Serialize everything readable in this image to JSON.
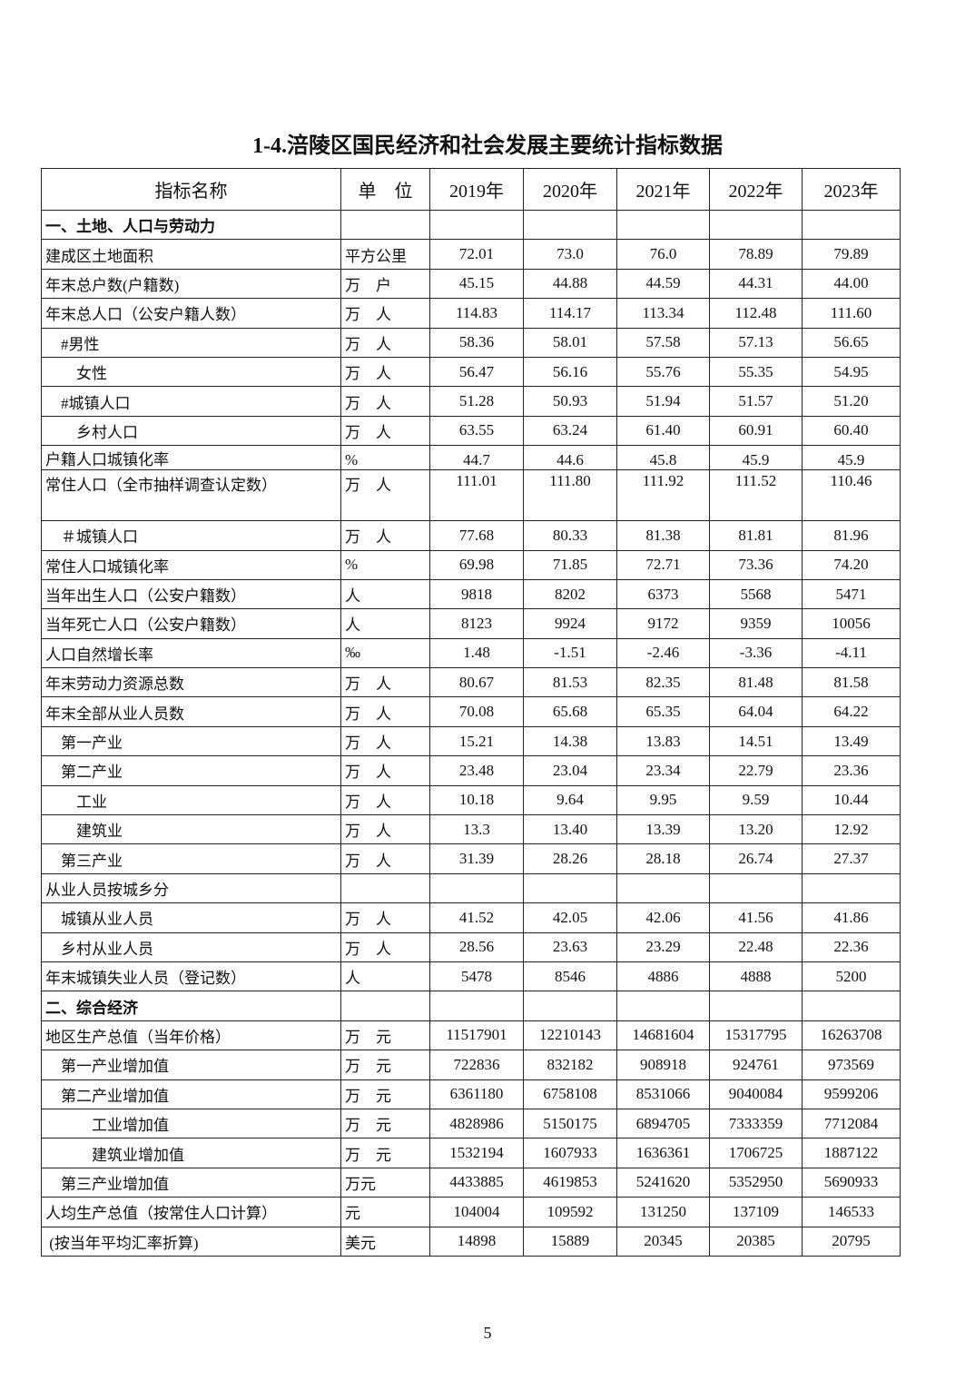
{
  "title": "1-4.涪陵区国民经济和社会发展主要统计指标数据",
  "table": {
    "headers": [
      "指标名称",
      "单　位",
      "2019年",
      "2020年",
      "2021年",
      "2022年",
      "2023年"
    ],
    "rows": [
      {
        "name": "一、土地、人口与劳动力",
        "unit": "",
        "values": [
          "",
          "",
          "",
          "",
          ""
        ],
        "section": true
      },
      {
        "name": "建成区土地面积",
        "unit": "平方公里",
        "values": [
          "72.01",
          "73.0",
          "76.0",
          "78.89",
          "79.89"
        ]
      },
      {
        "name": "年末总户数(户籍数)",
        "unit": "万　户",
        "values": [
          "45.15",
          "44.88",
          "44.59",
          "44.31",
          "44.00"
        ]
      },
      {
        "name": "年末总人口（公安户籍人数）",
        "unit": "万　人",
        "values": [
          "114.83",
          "114.17",
          "113.34",
          "112.48",
          "111.60"
        ]
      },
      {
        "name": "　#男性",
        "unit": "万　人",
        "values": [
          "58.36",
          "58.01",
          "57.58",
          "57.13",
          "56.65"
        ]
      },
      {
        "name": "　　女性",
        "unit": "万　人",
        "values": [
          "56.47",
          "56.16",
          "55.76",
          "55.35",
          "54.95"
        ]
      },
      {
        "name": "　#城镇人口",
        "unit": "万　人",
        "values": [
          "51.28",
          "50.93",
          "51.94",
          "51.57",
          "51.20"
        ]
      },
      {
        "name": "　　乡村人口",
        "unit": "万　人",
        "values": [
          "63.55",
          "63.24",
          "61.40",
          "60.91",
          "60.40"
        ]
      },
      {
        "name": "户籍人口城镇化率",
        "unit": "%",
        "values": [
          "44.7",
          "44.6",
          "45.8",
          "45.9",
          "45.9"
        ],
        "short": true
      },
      {
        "name": "常住人口（全市抽样调查认定数）",
        "unit": "万　人",
        "values": [
          "111.01",
          "111.80",
          "111.92",
          "111.52",
          "110.46"
        ],
        "tall": true
      },
      {
        "name": "　＃城镇人口",
        "unit": "万　人",
        "values": [
          "77.68",
          "80.33",
          "81.38",
          "81.81",
          "81.96"
        ]
      },
      {
        "name": "常住人口城镇化率",
        "unit": "%",
        "values": [
          "69.98",
          "71.85",
          "72.71",
          "73.36",
          "74.20"
        ]
      },
      {
        "name": "当年出生人口（公安户籍数）",
        "unit": "人",
        "values": [
          "9818",
          "8202",
          "6373",
          "5568",
          "5471"
        ]
      },
      {
        "name": "当年死亡人口（公安户籍数）",
        "unit": "人",
        "values": [
          "8123",
          "9924",
          "9172",
          "9359",
          "10056"
        ]
      },
      {
        "name": "人口自然增长率",
        "unit": "‰",
        "values": [
          "1.48",
          "-1.51",
          "-2.46",
          "-3.36",
          "-4.11"
        ]
      },
      {
        "name": "年末劳动力资源总数",
        "unit": "万　人",
        "values": [
          "80.67",
          "81.53",
          "82.35",
          "81.48",
          "81.58"
        ]
      },
      {
        "name": "年末全部从业人员数",
        "unit": "万　人",
        "values": [
          "70.08",
          "65.68",
          "65.35",
          "64.04",
          "64.22"
        ]
      },
      {
        "name": "　第一产业",
        "unit": "万　人",
        "values": [
          "15.21",
          "14.38",
          "13.83",
          "14.51",
          "13.49"
        ]
      },
      {
        "name": "　第二产业",
        "unit": "万　人",
        "values": [
          "23.48",
          "23.04",
          "23.34",
          "22.79",
          "23.36"
        ]
      },
      {
        "name": "　　工业",
        "unit": "万　人",
        "values": [
          "10.18",
          "9.64",
          "9.95",
          "9.59",
          "10.44"
        ]
      },
      {
        "name": "　　建筑业",
        "unit": "万　人",
        "values": [
          "13.3",
          "13.40",
          "13.39",
          "13.20",
          "12.92"
        ]
      },
      {
        "name": "　第三产业",
        "unit": "万　人",
        "values": [
          "31.39",
          "28.26",
          "28.18",
          "26.74",
          "27.37"
        ]
      },
      {
        "name": "从业人员按城乡分",
        "unit": "",
        "values": [
          "",
          "",
          "",
          "",
          ""
        ]
      },
      {
        "name": "　城镇从业人员",
        "unit": "万　人",
        "values": [
          "41.52",
          "42.05",
          "42.06",
          "41.56",
          "41.86"
        ]
      },
      {
        "name": "　乡村从业人员",
        "unit": "万　人",
        "values": [
          "28.56",
          "23.63",
          "23.29",
          "22.48",
          "22.36"
        ]
      },
      {
        "name": "年末城镇失业人员（登记数）",
        "unit": "人",
        "values": [
          "5478",
          "8546",
          "4886",
          "4888",
          "5200"
        ]
      },
      {
        "name": "二、综合经济",
        "unit": "",
        "values": [
          "",
          "",
          "",
          "",
          ""
        ],
        "section": true
      },
      {
        "name": "地区生产总值（当年价格）",
        "unit": "万　元",
        "values": [
          "11517901",
          "12210143",
          "14681604",
          "15317795",
          "16263708"
        ]
      },
      {
        "name": "　第一产业增加值",
        "unit": "万　元",
        "values": [
          "722836",
          "832182",
          "908918",
          "924761",
          "973569"
        ]
      },
      {
        "name": "　第二产业增加值",
        "unit": "万　元",
        "values": [
          "6361180",
          "6758108",
          "8531066",
          "9040084",
          "9599206"
        ]
      },
      {
        "name": "　　　工业增加值",
        "unit": "万　元",
        "values": [
          "4828986",
          "5150175",
          "6894705",
          "7333359",
          "7712084"
        ]
      },
      {
        "name": "　　　建筑业增加值",
        "unit": "万　元",
        "values": [
          "1532194",
          "1607933",
          "1636361",
          "1706725",
          "1887122"
        ]
      },
      {
        "name": "　第三产业增加值",
        "unit": "万元",
        "values": [
          "4433885",
          "4619853",
          "5241620",
          "5352950",
          "5690933"
        ]
      },
      {
        "name": "人均生产总值（按常住人口计算）",
        "unit": "元",
        "values": [
          "104004",
          "109592",
          "131250",
          "137109",
          "146533"
        ]
      },
      {
        "name": " (按当年平均汇率折算)",
        "unit": "美元",
        "values": [
          "14898",
          "15889",
          "20345",
          "20385",
          "20795"
        ]
      }
    ]
  },
  "page_number": "5"
}
